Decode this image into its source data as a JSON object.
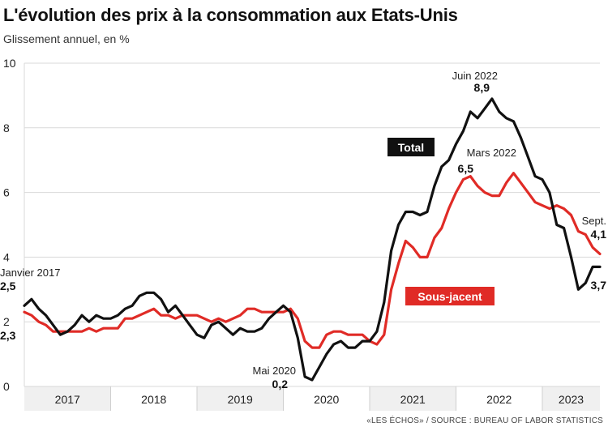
{
  "header": {
    "title": "L'évolution des prix à la consommation aux Etats-Unis",
    "subtitle": "Glissement annuel, en %",
    "source": "«LES ÉCHOS» / SOURCE : BUREAU OF LABOR STATISTICS"
  },
  "colors": {
    "total": "#111111",
    "core": "#e02b26",
    "grid": "#d9d9d9",
    "band": "#f0f0f0"
  },
  "chart_data": {
    "type": "line",
    "title": "L'évolution des prix à la consommation aux Etats-Unis",
    "subtitle": "Glissement annuel, en %",
    "ylim": [
      0,
      10
    ],
    "yticks": [
      "0",
      "2",
      "4",
      "6",
      "8",
      "10"
    ],
    "xlim": [
      "2017-01",
      "2023-09"
    ],
    "xticks": [
      "2017",
      "2018",
      "2019",
      "2020",
      "2021",
      "2022",
      "2023"
    ],
    "grid": true,
    "series": [
      {
        "name": "Total",
        "x": [
          "2017-01",
          "2017-02",
          "2017-03",
          "2017-04",
          "2017-05",
          "2017-06",
          "2017-07",
          "2017-08",
          "2017-09",
          "2017-10",
          "2017-11",
          "2017-12",
          "2018-01",
          "2018-02",
          "2018-03",
          "2018-04",
          "2018-05",
          "2018-06",
          "2018-07",
          "2018-08",
          "2018-09",
          "2018-10",
          "2018-11",
          "2018-12",
          "2019-01",
          "2019-02",
          "2019-03",
          "2019-04",
          "2019-05",
          "2019-06",
          "2019-07",
          "2019-08",
          "2019-09",
          "2019-10",
          "2019-11",
          "2019-12",
          "2020-01",
          "2020-02",
          "2020-03",
          "2020-04",
          "2020-05",
          "2020-06",
          "2020-07",
          "2020-08",
          "2020-09",
          "2020-10",
          "2020-11",
          "2020-12",
          "2021-01",
          "2021-02",
          "2021-03",
          "2021-04",
          "2021-05",
          "2021-06",
          "2021-07",
          "2021-08",
          "2021-09",
          "2021-10",
          "2021-11",
          "2021-12",
          "2022-01",
          "2022-02",
          "2022-03",
          "2022-04",
          "2022-05",
          "2022-06",
          "2022-07",
          "2022-08",
          "2022-09",
          "2022-10",
          "2022-11",
          "2022-12",
          "2023-01",
          "2023-02",
          "2023-03",
          "2023-04",
          "2023-05",
          "2023-06",
          "2023-07",
          "2023-08",
          "2023-09"
        ],
        "y": [
          2.5,
          2.7,
          2.4,
          2.2,
          1.9,
          1.6,
          1.7,
          1.9,
          2.2,
          2.0,
          2.2,
          2.1,
          2.1,
          2.2,
          2.4,
          2.5,
          2.8,
          2.9,
          2.9,
          2.7,
          2.3,
          2.5,
          2.2,
          1.9,
          1.6,
          1.5,
          1.9,
          2.0,
          1.8,
          1.6,
          1.8,
          1.7,
          1.7,
          1.8,
          2.1,
          2.3,
          2.5,
          2.3,
          1.5,
          0.3,
          0.2,
          0.6,
          1.0,
          1.3,
          1.4,
          1.2,
          1.2,
          1.4,
          1.4,
          1.7,
          2.6,
          4.2,
          5.0,
          5.4,
          5.4,
          5.3,
          5.4,
          6.2,
          6.8,
          7.0,
          7.5,
          7.9,
          8.5,
          8.3,
          8.6,
          8.9,
          8.5,
          8.3,
          8.2,
          7.7,
          7.1,
          6.5,
          6.4,
          6.0,
          5.0,
          4.9,
          4.0,
          3.0,
          3.2,
          3.7,
          3.7
        ]
      },
      {
        "name": "Sous-jacent",
        "x": [
          "2017-01",
          "2017-02",
          "2017-03",
          "2017-04",
          "2017-05",
          "2017-06",
          "2017-07",
          "2017-08",
          "2017-09",
          "2017-10",
          "2017-11",
          "2017-12",
          "2018-01",
          "2018-02",
          "2018-03",
          "2018-04",
          "2018-05",
          "2018-06",
          "2018-07",
          "2018-08",
          "2018-09",
          "2018-10",
          "2018-11",
          "2018-12",
          "2019-01",
          "2019-02",
          "2019-03",
          "2019-04",
          "2019-05",
          "2019-06",
          "2019-07",
          "2019-08",
          "2019-09",
          "2019-10",
          "2019-11",
          "2019-12",
          "2020-01",
          "2020-02",
          "2020-03",
          "2020-04",
          "2020-05",
          "2020-06",
          "2020-07",
          "2020-08",
          "2020-09",
          "2020-10",
          "2020-11",
          "2020-12",
          "2021-01",
          "2021-02",
          "2021-03",
          "2021-04",
          "2021-05",
          "2021-06",
          "2021-07",
          "2021-08",
          "2021-09",
          "2021-10",
          "2021-11",
          "2021-12",
          "2022-01",
          "2022-02",
          "2022-03",
          "2022-04",
          "2022-05",
          "2022-06",
          "2022-07",
          "2022-08",
          "2022-09",
          "2022-10",
          "2022-11",
          "2022-12",
          "2023-01",
          "2023-02",
          "2023-03",
          "2023-04",
          "2023-05",
          "2023-06",
          "2023-07",
          "2023-08",
          "2023-09"
        ],
        "y": [
          2.3,
          2.2,
          2.0,
          1.9,
          1.7,
          1.7,
          1.7,
          1.7,
          1.7,
          1.8,
          1.7,
          1.8,
          1.8,
          1.8,
          2.1,
          2.1,
          2.2,
          2.3,
          2.4,
          2.2,
          2.2,
          2.1,
          2.2,
          2.2,
          2.2,
          2.1,
          2.0,
          2.1,
          2.0,
          2.1,
          2.2,
          2.4,
          2.4,
          2.3,
          2.3,
          2.3,
          2.3,
          2.4,
          2.1,
          1.4,
          1.2,
          1.2,
          1.6,
          1.7,
          1.7,
          1.6,
          1.6,
          1.6,
          1.4,
          1.3,
          1.6,
          3.0,
          3.8,
          4.5,
          4.3,
          4.0,
          4.0,
          4.6,
          4.9,
          5.5,
          6.0,
          6.4,
          6.5,
          6.2,
          6.0,
          5.9,
          5.9,
          6.3,
          6.6,
          6.3,
          6.0,
          5.7,
          5.6,
          5.5,
          5.6,
          5.5,
          5.3,
          4.8,
          4.7,
          4.3,
          4.1
        ]
      }
    ],
    "legend": {
      "total": "Total",
      "core": "Sous-jacent"
    },
    "annotations": [
      {
        "label": "Janvier 2017",
        "value": "2,5",
        "x": "2017-01",
        "y": 2.5
      },
      {
        "label": "",
        "value": "2,3",
        "x": "2017-01",
        "y": 2.3
      },
      {
        "label": "Mai 2020",
        "value": "0,2",
        "x": "2020-05",
        "y": 0.2
      },
      {
        "label": "Juin 2022",
        "value": "8,9",
        "x": "2022-06",
        "y": 8.9
      },
      {
        "label": "Mars 2022",
        "value": "6,5",
        "x": "2022-03",
        "y": 6.5
      },
      {
        "label": "Sept.",
        "value": "4,1",
        "x": "2023-09",
        "y": 4.1
      },
      {
        "label": "",
        "value": "3,7",
        "x": "2023-09",
        "y": 3.7
      }
    ]
  }
}
